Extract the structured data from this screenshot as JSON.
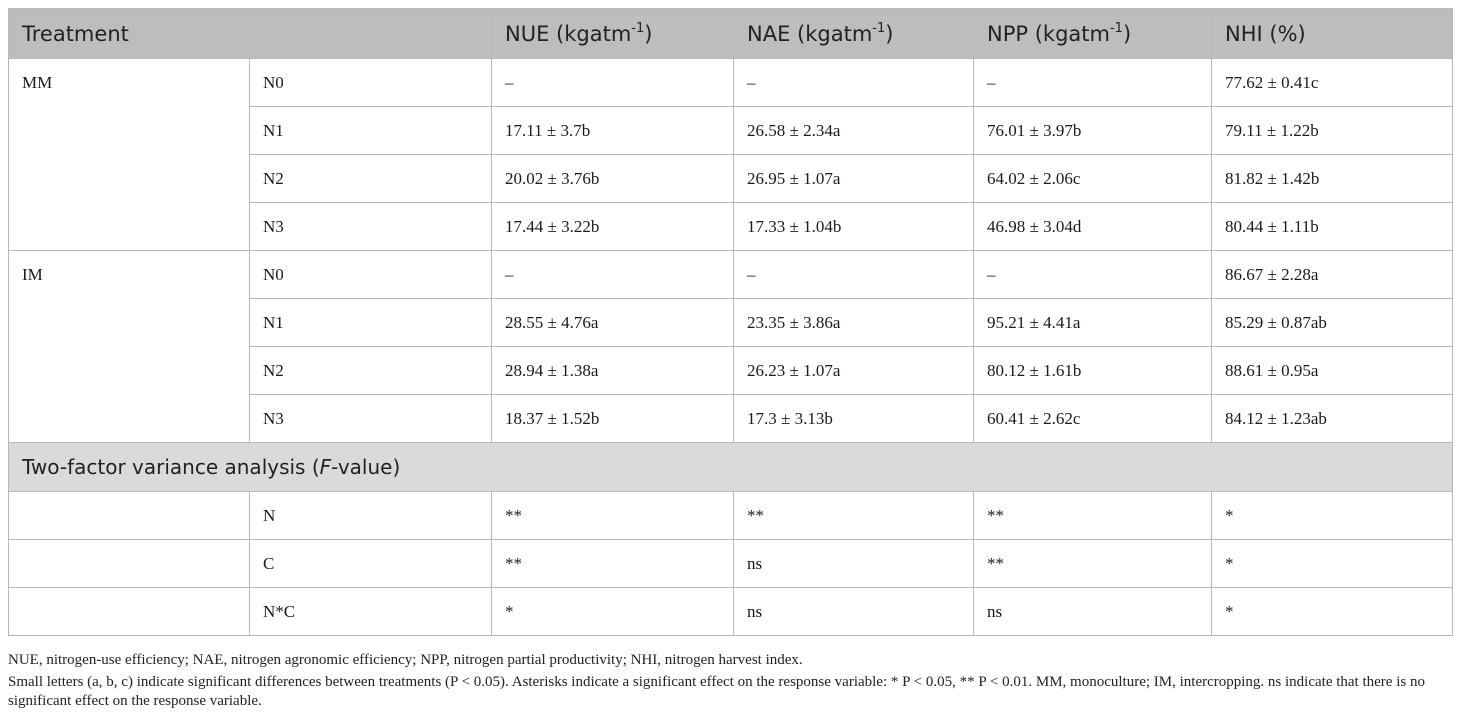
{
  "table": {
    "headers": {
      "treatment": "Treatment",
      "nue": "NUE (kgatm",
      "nae": "NAE (kgatm",
      "npp": "NPP (kgatm",
      "unit_exp": "-1",
      "unit_close": ")",
      "nhi": "NHI (%)"
    },
    "groups": [
      {
        "name": "MM",
        "rows": [
          {
            "level": "N0",
            "nue": "–",
            "nae": "–",
            "npp": "–",
            "nhi": "77.62 ± 0.41c"
          },
          {
            "level": "N1",
            "nue": "17.11 ± 3.7b",
            "nae": "26.58 ± 2.34a",
            "npp": "76.01 ± 3.97b",
            "nhi": "79.11 ± 1.22b"
          },
          {
            "level": "N2",
            "nue": "20.02 ± 3.76b",
            "nae": "26.95 ± 1.07a",
            "npp": "64.02 ± 2.06c",
            "nhi": "81.82 ± 1.42b"
          },
          {
            "level": "N3",
            "nue": "17.44 ± 3.22b",
            "nae": "17.33 ± 1.04b",
            "npp": "46.98 ± 3.04d",
            "nhi": "80.44 ± 1.11b"
          }
        ]
      },
      {
        "name": "IM",
        "rows": [
          {
            "level": "N0",
            "nue": "–",
            "nae": "–",
            "npp": "–",
            "nhi": "86.67 ± 2.28a"
          },
          {
            "level": "N1",
            "nue": "28.55 ± 4.76a",
            "nae": "23.35 ± 3.86a",
            "npp": "95.21 ± 4.41a",
            "nhi": "85.29 ± 0.87ab"
          },
          {
            "level": "N2",
            "nue": "28.94 ± 1.38a",
            "nae": "26.23 ± 1.07a",
            "npp": "80.12 ± 1.61b",
            "nhi": "88.61 ± 0.95a"
          },
          {
            "level": "N3",
            "nue": "18.37 ± 1.52b",
            "nae": "17.3 ± 3.13b",
            "npp": "60.41 ± 2.62c",
            "nhi": "84.12 ± 1.23ab"
          }
        ]
      }
    ],
    "section": {
      "title_before": "Two-factor variance analysis (",
      "title_italic": "F",
      "title_after": "-value)"
    },
    "anova": [
      {
        "factor": "N",
        "nue": "**",
        "nae": "**",
        "npp": "**",
        "nhi": "*"
      },
      {
        "factor": "C",
        "nue": "**",
        "nae": "ns",
        "npp": "**",
        "nhi": "*"
      },
      {
        "factor": "N*C",
        "nue": "*",
        "nae": "ns",
        "npp": "ns",
        "nhi": "*"
      }
    ]
  },
  "footnotes": [
    "NUE, nitrogen-use efficiency; NAE, nitrogen agronomic efficiency; NPP, nitrogen partial productivity; NHI, nitrogen harvest index.",
    "Small letters (a, b, c) indicate significant differences between treatments (P < 0.05). Asterisks indicate a significant effect on the response variable: * P < 0.05, ** P < 0.01. MM, monoculture; IM, intercropping. ns indicate that there is no significant effect on the response variable."
  ]
}
